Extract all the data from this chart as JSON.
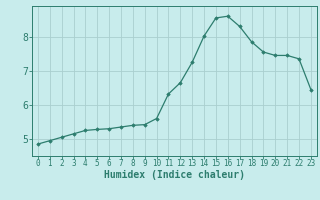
{
  "x": [
    0,
    1,
    2,
    3,
    4,
    5,
    6,
    7,
    8,
    9,
    10,
    11,
    12,
    13,
    14,
    15,
    16,
    17,
    18,
    19,
    20,
    21,
    22,
    23
  ],
  "y": [
    4.85,
    4.95,
    5.05,
    5.15,
    5.25,
    5.28,
    5.3,
    5.35,
    5.4,
    5.42,
    5.6,
    6.32,
    6.65,
    7.25,
    8.02,
    8.55,
    8.6,
    8.3,
    7.85,
    7.55,
    7.45,
    7.45,
    7.35,
    6.45
  ],
  "line_color": "#2d7d6e",
  "marker": "D",
  "marker_size": 1.8,
  "bg_color": "#c8ecec",
  "grid_color": "#aacfcf",
  "axis_color": "#2d7d6e",
  "xlabel": "Humidex (Indice chaleur)",
  "xlabel_fontsize": 7,
  "ylabel_ticks": [
    5,
    6,
    7,
    8
  ],
  "xtick_labels": [
    "0",
    "1",
    "2",
    "3",
    "4",
    "5",
    "6",
    "7",
    "8",
    "9",
    "10",
    "11",
    "12",
    "13",
    "14",
    "15",
    "16",
    "17",
    "18",
    "19",
    "20",
    "21",
    "22",
    "23"
  ],
  "xlim": [
    -0.5,
    23.5
  ],
  "ylim": [
    4.5,
    8.9
  ],
  "tick_fontsize": 5.5,
  "ytick_fontsize": 7
}
